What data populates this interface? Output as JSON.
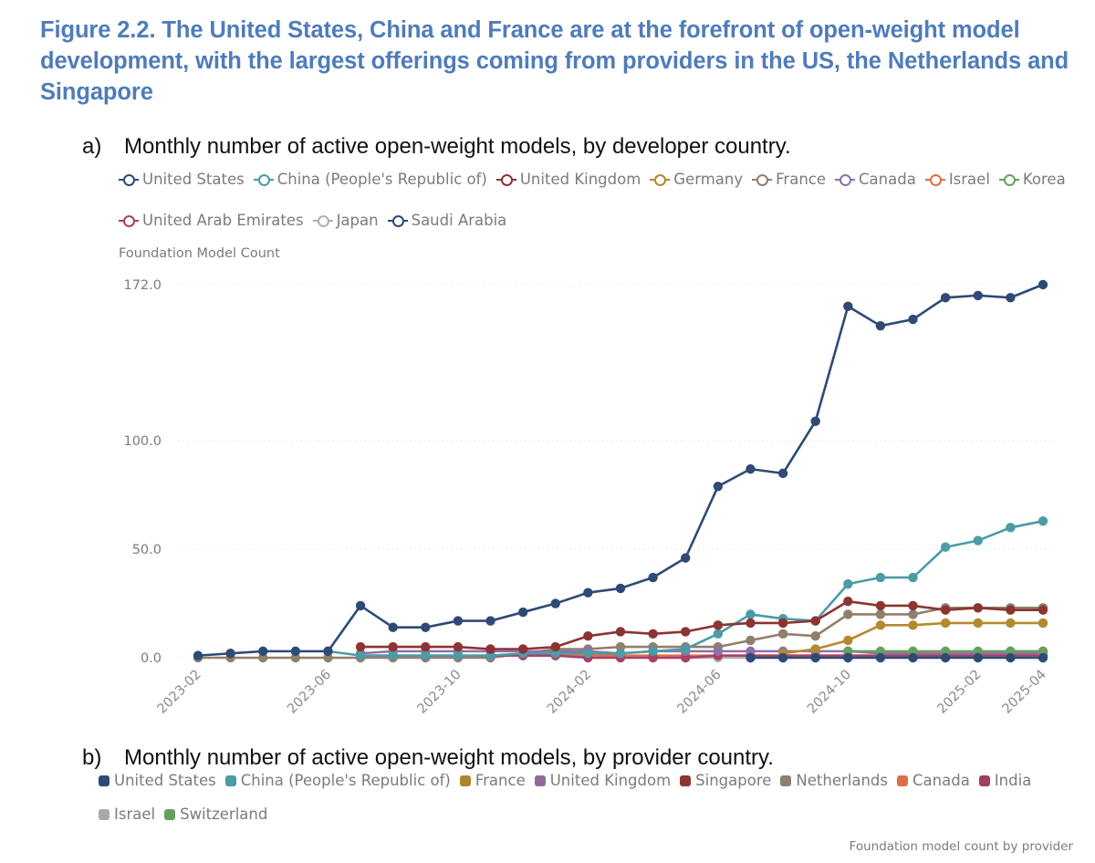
{
  "figure_title": "Figure  2.2. The United States, China and France are at the forefront of open-weight model development, with the largest offerings coming from providers in the US, the Netherlands and Singapore",
  "panel_a": {
    "label": "a)",
    "title": "Monthly number of active open-weight models, by developer country.",
    "legend": [
      {
        "name": "United States",
        "color": "#2e4a75"
      },
      {
        "name": "China (People's Republic of)",
        "color": "#4c9ba6"
      },
      {
        "name": "United Kingdom",
        "color": "#8c3431"
      },
      {
        "name": "Germany",
        "color": "#b5892f"
      },
      {
        "name": "France",
        "color": "#8f7f6c"
      },
      {
        "name": "Canada",
        "color": "#9070a8"
      },
      {
        "name": "Israel",
        "color": "#de6f45"
      },
      {
        "name": "Korea",
        "color": "#66a05e"
      },
      {
        "name": "United Arab Emirates",
        "color": "#aa3f67"
      },
      {
        "name": "Japan",
        "color": "#b0b0b0"
      },
      {
        "name": "Saudi Arabia",
        "color": "#2e4a75"
      }
    ]
  },
  "panel_b": {
    "label": "b)",
    "title": "Monthly number of active open-weight models, by provider country.",
    "legend": [
      {
        "name": "United States",
        "color": "#2e4a75"
      },
      {
        "name": "China (People's Republic of)",
        "color": "#4c9ba6"
      },
      {
        "name": "France",
        "color": "#ad8430"
      },
      {
        "name": "United Kingdom",
        "color": "#8f6b9c"
      },
      {
        "name": "Singapore",
        "color": "#8c3431"
      },
      {
        "name": "Netherlands",
        "color": "#8f7f6c"
      },
      {
        "name": "Canada",
        "color": "#de6f45"
      },
      {
        "name": "India",
        "color": "#a33d62"
      },
      {
        "name": "Israel",
        "color": "#a8a8a8"
      },
      {
        "name": "Switzerland",
        "color": "#66a05e"
      }
    ],
    "footnote": "Foundation model count by provider"
  },
  "chart_data": {
    "type": "line",
    "title": "Monthly number of active open-weight models, by developer country.",
    "xlabel": "",
    "ylabel": "Foundation Model Count",
    "ylim": [
      0,
      172
    ],
    "yticks": [
      "0.0",
      "50.0",
      "100.0",
      "172.0"
    ],
    "ytick_values": [
      0,
      50,
      100,
      172
    ],
    "grid": true,
    "legend_position": "top",
    "x": [
      "2023-02",
      "2023-03",
      "2023-04",
      "2023-05",
      "2023-06",
      "2023-07",
      "2023-08",
      "2023-09",
      "2023-10",
      "2023-11",
      "2023-12",
      "2024-01",
      "2024-02",
      "2024-03",
      "2024-04",
      "2024-05",
      "2024-06",
      "2024-07",
      "2024-08",
      "2024-09",
      "2024-10",
      "2024-11",
      "2024-12",
      "2025-01",
      "2025-02",
      "2025-03",
      "2025-04"
    ],
    "xticks": [
      "2023-02",
      "2023-06",
      "2023-10",
      "2024-02",
      "2024-06",
      "2024-10",
      "2025-02",
      "2025-04"
    ],
    "series": [
      {
        "name": "France",
        "color": "#8f7f6c",
        "values": [
          0,
          0,
          0,
          0,
          0,
          0,
          0,
          0,
          0,
          0,
          2,
          4,
          4,
          5,
          5,
          5,
          5,
          8,
          11,
          10,
          20,
          20,
          20,
          23,
          23,
          23,
          23
        ]
      },
      {
        "name": "Japan",
        "color": "#b0b0b0",
        "values": [
          null,
          null,
          null,
          null,
          null,
          null,
          null,
          null,
          null,
          null,
          null,
          null,
          null,
          null,
          null,
          0,
          0,
          0,
          null,
          null,
          null,
          null,
          null,
          null,
          null,
          null,
          null
        ]
      },
      {
        "name": "Israel",
        "color": "#de6f45",
        "values": [
          null,
          null,
          null,
          null,
          null,
          null,
          null,
          null,
          null,
          null,
          1,
          1,
          1,
          1,
          1,
          1,
          1,
          1,
          1,
          1,
          1,
          1,
          1,
          1,
          1,
          3,
          3
        ]
      },
      {
        "name": "United Arab Emirates",
        "color": "#aa3f67",
        "values": [
          null,
          null,
          null,
          null,
          null,
          1,
          1,
          1,
          1,
          1,
          1,
          1,
          0,
          0,
          0,
          0,
          1,
          1,
          1,
          1,
          1,
          1,
          1,
          1,
          1,
          1,
          1
        ]
      },
      {
        "name": "Canada",
        "color": "#9070a8",
        "values": [
          null,
          null,
          null,
          null,
          null,
          2,
          3,
          3,
          3,
          3,
          3,
          3,
          3,
          2,
          3,
          3,
          3,
          3,
          3,
          3,
          3,
          2,
          2,
          2,
          2,
          2,
          2
        ]
      },
      {
        "name": "Korea",
        "color": "#66a05e",
        "values": [
          null,
          null,
          null,
          null,
          null,
          null,
          null,
          null,
          null,
          null,
          null,
          null,
          null,
          null,
          null,
          null,
          null,
          null,
          null,
          null,
          3,
          3,
          3,
          3,
          3,
          3,
          3
        ]
      },
      {
        "name": "Germany",
        "color": "#b5892f",
        "values": [
          null,
          null,
          null,
          null,
          null,
          null,
          null,
          null,
          null,
          null,
          null,
          null,
          null,
          null,
          null,
          null,
          null,
          null,
          2,
          4,
          8,
          15,
          15,
          16,
          16,
          16,
          16
        ]
      },
      {
        "name": "China (People's Republic of)",
        "color": "#4c9ba6",
        "values": [
          null,
          null,
          null,
          null,
          3,
          1,
          1,
          1,
          1,
          1,
          2,
          2,
          2,
          2,
          3,
          4,
          11,
          20,
          18,
          17,
          34,
          37,
          37,
          51,
          54,
          60,
          63
        ]
      },
      {
        "name": "United Kingdom",
        "color": "#8c3431",
        "values": [
          null,
          null,
          null,
          null,
          null,
          5,
          5,
          5,
          5,
          4,
          4,
          5,
          10,
          12,
          11,
          12,
          15,
          16,
          16,
          17,
          26,
          24,
          24,
          22,
          23,
          22,
          22
        ]
      },
      {
        "name": "Saudi Arabia",
        "color": "#2e4a75",
        "values": [
          null,
          null,
          null,
          null,
          null,
          null,
          null,
          null,
          null,
          null,
          null,
          null,
          null,
          null,
          null,
          null,
          null,
          0,
          0,
          0,
          0,
          0,
          0,
          0,
          0,
          0,
          0
        ]
      },
      {
        "name": "United States",
        "color": "#2e4a75",
        "values": [
          1,
          2,
          3,
          3,
          3,
          24,
          14,
          14,
          17,
          17,
          21,
          25,
          30,
          32,
          37,
          46,
          79,
          87,
          85,
          109,
          162,
          153,
          156,
          166,
          167,
          166,
          172
        ]
      }
    ]
  }
}
